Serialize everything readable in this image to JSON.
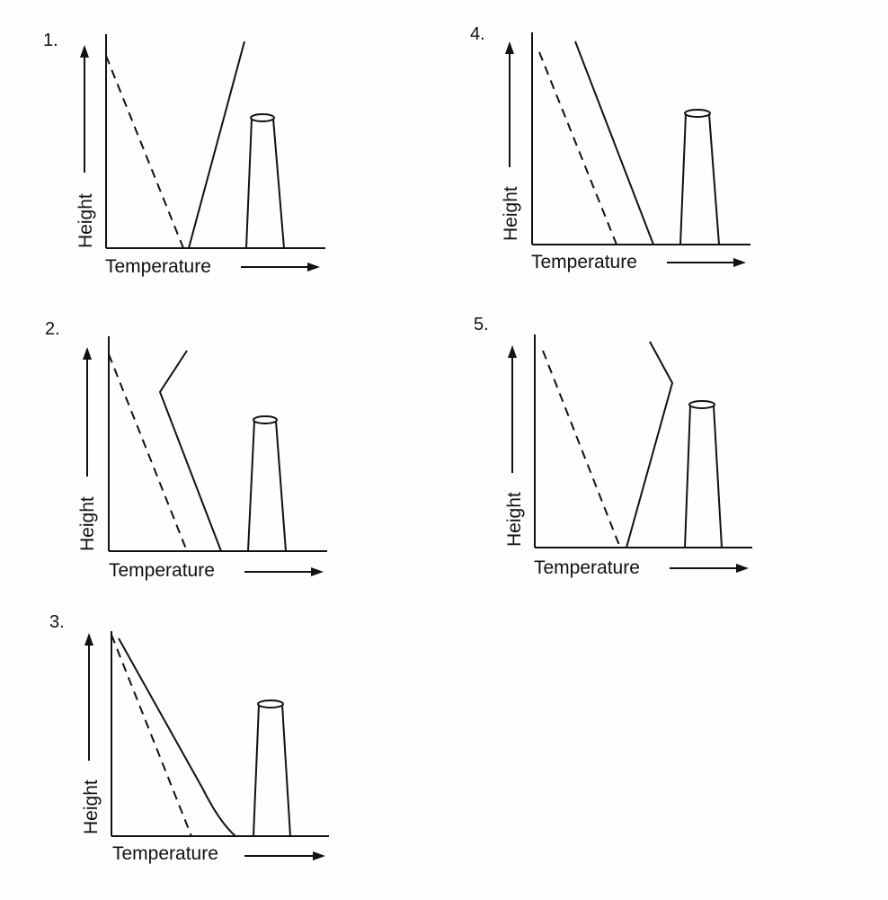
{
  "panels": [
    {
      "number": "1.",
      "x_label": "Temperature",
      "y_label": "Height"
    },
    {
      "number": "2.",
      "x_label": "Temperature",
      "y_label": "Height"
    },
    {
      "number": "3.",
      "x_label": "Temperature",
      "y_label": "Height"
    },
    {
      "number": "4.",
      "x_label": "Temperature",
      "y_label": "Height"
    },
    {
      "number": "5.",
      "x_label": "Temperature",
      "y_label": "Height"
    }
  ],
  "colors": {
    "ink": "#111111",
    "paper": "#fefefe"
  }
}
